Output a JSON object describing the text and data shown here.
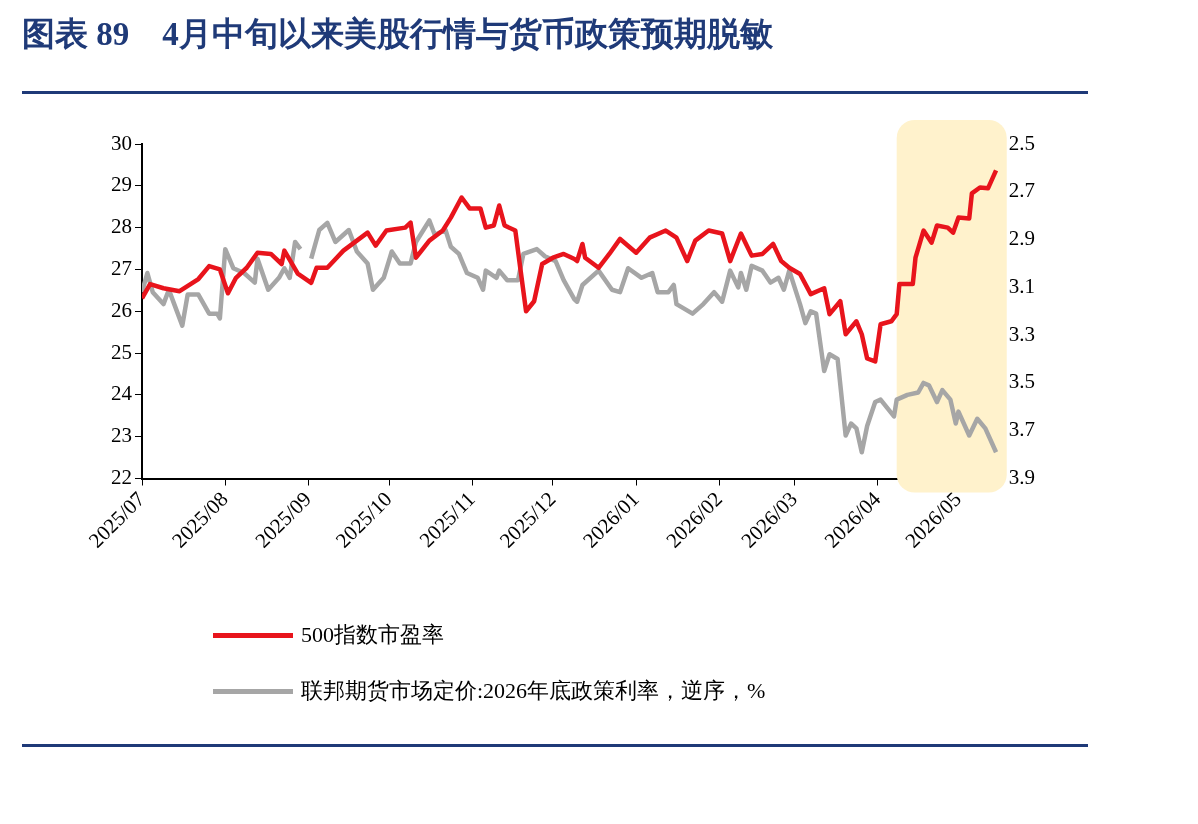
{
  "chart_data": {
    "type": "line",
    "title": "图表 89　4月中旬以来美股行情与货币政策预期脱敏",
    "legend": "bottom",
    "marker": "none",
    "line_style": "solid",
    "grid": false,
    "xlim": [
      "2025-07-01",
      "2026-05-16"
    ],
    "xticks": [
      {
        "value": "2025-07-01",
        "label": "2025/07"
      },
      {
        "value": "2025-08-01",
        "label": "2025/08"
      },
      {
        "value": "2025-09-01",
        "label": "2025/09"
      },
      {
        "value": "2025-10-01",
        "label": "2025/10"
      },
      {
        "value": "2025-11-01",
        "label": "2025/11"
      },
      {
        "value": "2025-12-01",
        "label": "2025/12"
      },
      {
        "value": "2026-01-01",
        "label": "2026/01"
      },
      {
        "value": "2026-02-01",
        "label": "2026/02"
      },
      {
        "value": "2026-03-01",
        "label": "2026/03"
      },
      {
        "value": "2026-04-01",
        "label": "2026/04"
      },
      {
        "value": "2026-05-01",
        "label": "2026/05"
      }
    ],
    "ylim": [
      22,
      30
    ],
    "yticks": [
      22,
      23,
      24,
      25,
      26,
      27,
      28,
      29,
      30
    ],
    "y2lim": [
      3.9,
      2.5
    ],
    "y2ticks": [
      2.5,
      2.7,
      2.9,
      3.1,
      3.3,
      3.5,
      3.7,
      3.9
    ],
    "bands": [
      {
        "axis": "x",
        "from": "2026-04-08",
        "to": "2026-05-16",
        "color": "#fff2cc"
      }
    ],
    "series": [
      {
        "name": "500指数市盈率",
        "color": "#e8141c",
        "x": [
          "2025-07-01",
          "2025-07-04",
          "2025-07-09",
          "2025-07-15",
          "2025-07-22",
          "2025-07-26",
          "2025-07-30",
          "2025-08-02",
          "2025-08-05",
          "2025-08-09",
          "2025-08-13",
          "2025-08-18",
          "2025-08-22",
          "2025-08-23",
          "2025-08-28",
          "2025-09-02",
          "2025-09-04",
          "2025-09-08",
          "2025-09-14",
          "2025-09-19",
          "2025-09-23",
          "2025-09-26",
          "2025-09-30",
          "2025-10-07",
          "2025-10-09",
          "2025-10-11",
          "2025-10-16",
          "2025-10-21",
          "2025-10-24",
          "2025-10-28",
          "2025-10-31",
          "2025-11-04",
          "2025-11-06",
          "2025-11-09",
          "2025-11-11",
          "2025-11-13",
          "2025-11-17",
          "2025-11-19",
          "2025-11-21",
          "2025-11-24",
          "2025-11-27",
          "2025-12-01",
          "2025-12-05",
          "2025-12-09",
          "2025-12-10",
          "2025-12-12",
          "2025-12-13",
          "2025-12-18",
          "2025-12-22",
          "2025-12-26",
          "2026-01-01",
          "2026-01-06",
          "2026-01-12",
          "2026-01-16",
          "2026-01-20",
          "2026-01-23",
          "2026-01-28",
          "2026-02-02",
          "2026-02-05",
          "2026-02-09",
          "2026-02-13",
          "2026-02-17",
          "2026-02-21",
          "2026-02-24",
          "2026-02-27",
          "2026-03-03",
          "2026-03-07",
          "2026-03-12",
          "2026-03-14",
          "2026-03-18",
          "2026-03-20",
          "2026-03-24",
          "2026-03-26",
          "2026-03-28",
          "2026-03-31",
          "2026-04-02",
          "2026-04-06",
          "2026-04-08",
          "2026-04-09",
          "2026-04-14",
          "2026-04-15",
          "2026-04-18",
          "2026-04-21",
          "2026-04-23",
          "2026-04-27",
          "2026-04-29",
          "2026-05-01",
          "2026-05-05",
          "2026-05-06",
          "2026-05-09",
          "2026-05-12",
          "2026-05-15"
        ],
        "values": [
          26.31,
          26.65,
          26.55,
          26.48,
          26.77,
          27.08,
          27.0,
          26.43,
          26.8,
          27.04,
          27.4,
          27.37,
          27.13,
          27.45,
          26.9,
          26.68,
          27.04,
          27.04,
          27.45,
          27.69,
          27.88,
          27.57,
          27.93,
          28.0,
          28.12,
          27.28,
          27.69,
          27.93,
          28.24,
          28.72,
          28.46,
          28.46,
          28.0,
          28.05,
          28.53,
          28.05,
          27.93,
          26.96,
          26.0,
          26.24,
          27.13,
          27.28,
          27.37,
          27.25,
          27.2,
          27.61,
          27.28,
          27.04,
          27.37,
          27.73,
          27.4,
          27.76,
          27.93,
          27.76,
          27.2,
          27.69,
          27.93,
          27.86,
          27.2,
          27.86,
          27.33,
          27.37,
          27.61,
          27.2,
          27.04,
          26.89,
          26.41,
          26.55,
          25.93,
          26.24,
          25.45,
          25.76,
          25.45,
          24.87,
          24.8,
          25.69,
          25.76,
          25.93,
          26.65,
          26.65,
          27.28,
          27.93,
          27.64,
          28.05,
          28.0,
          27.88,
          28.24,
          28.22,
          28.82,
          28.96,
          28.94,
          29.37
        ]
      },
      {
        "name": "联邦期货市场定价:2026年底政策利率，逆序，%",
        "color": "#a6a6a6",
        "axis": "y2",
        "x": [
          "2025-07-01",
          "2025-07-03",
          "2025-07-05",
          "2025-07-09",
          "2025-07-11",
          "2025-07-13",
          "2025-07-16",
          "2025-07-18",
          "2025-07-22",
          "2025-07-26",
          "2025-07-29",
          "2025-07-30",
          "2025-08-01",
          "2025-08-04",
          "2025-08-08",
          "2025-08-12",
          "2025-08-13",
          "2025-08-17",
          "2025-08-21",
          "2025-08-23",
          "2025-08-25",
          "2025-08-27",
          "2025-08-29",
          "2025-08-31",
          "2025-09-02",
          "2025-09-05",
          "2025-09-08",
          "2025-09-11",
          "2025-09-16",
          "2025-09-19",
          "2025-09-23",
          "2025-09-25",
          "2025-09-29",
          "2025-10-02",
          "2025-10-05",
          "2025-10-09",
          "2025-10-11",
          "2025-10-16",
          "2025-10-18",
          "2025-10-22",
          "2025-10-24",
          "2025-10-27",
          "2025-10-30",
          "2025-11-03",
          "2025-11-05",
          "2025-11-06",
          "2025-11-10",
          "2025-11-11",
          "2025-11-14",
          "2025-11-18",
          "2025-11-20",
          "2025-11-25",
          "2025-11-28",
          "2025-12-02",
          "2025-12-05",
          "2025-12-09",
          "2025-12-10",
          "2025-12-12",
          "2025-12-18",
          "2025-12-23",
          "2025-12-26",
          "2025-12-29",
          "2026-01-03",
          "2026-01-07",
          "2026-01-09",
          "2026-01-13",
          "2026-01-15",
          "2026-01-16",
          "2026-01-22",
          "2026-01-26",
          "2026-01-30",
          "2026-02-02",
          "2026-02-05",
          "2026-02-08",
          "2026-02-09",
          "2026-02-11",
          "2026-02-13",
          "2026-02-17",
          "2026-02-20",
          "2026-02-23",
          "2026-02-25",
          "2026-02-27",
          "2026-03-03",
          "2026-03-05",
          "2026-03-07",
          "2026-03-09",
          "2026-03-12",
          "2026-03-14",
          "2026-03-17",
          "2026-03-20",
          "2026-03-22",
          "2026-03-24",
          "2026-03-26",
          "2026-03-28",
          "2026-03-31",
          "2026-04-02",
          "2026-04-07",
          "2026-04-08",
          "2026-04-12",
          "2026-04-16",
          "2026-04-18",
          "2026-04-20",
          "2026-04-23",
          "2026-04-25",
          "2026-04-28",
          "2026-04-30",
          "2026-05-01",
          "2026-05-05",
          "2026-05-08",
          "2026-05-11",
          "2026-05-15"
        ],
        "values": [
          3.12,
          3.04,
          3.12,
          3.17,
          3.11,
          3.17,
          3.26,
          3.13,
          3.13,
          3.21,
          3.21,
          3.23,
          2.94,
          3.02,
          3.04,
          3.08,
          2.98,
          3.11,
          3.06,
          3.02,
          3.06,
          2.91,
          2.94,
          null,
          2.98,
          2.86,
          2.83,
          2.91,
          2.86,
          2.95,
          3.0,
          3.11,
          3.06,
          2.95,
          3.0,
          3.0,
          2.91,
          2.82,
          2.88,
          2.86,
          2.93,
          2.96,
          3.04,
          3.06,
          3.11,
          3.03,
          3.06,
          3.03,
          3.07,
          3.07,
          2.96,
          2.94,
          2.97,
          2.99,
          3.07,
          3.15,
          3.16,
          3.09,
          3.03,
          3.11,
          3.12,
          3.02,
          3.06,
          3.04,
          3.12,
          3.12,
          3.09,
          3.17,
          3.21,
          3.17,
          3.12,
          3.16,
          3.03,
          3.1,
          3.04,
          3.11,
          3.01,
          3.03,
          3.08,
          3.06,
          3.11,
          3.03,
          3.17,
          3.25,
          3.2,
          3.21,
          3.45,
          3.38,
          3.4,
          3.72,
          3.67,
          3.69,
          3.79,
          3.68,
          3.58,
          3.57,
          3.64,
          3.57,
          3.55,
          3.54,
          3.5,
          3.51,
          3.58,
          3.53,
          3.57,
          3.67,
          3.62,
          3.72,
          3.65,
          3.69,
          3.79
        ]
      }
    ]
  }
}
